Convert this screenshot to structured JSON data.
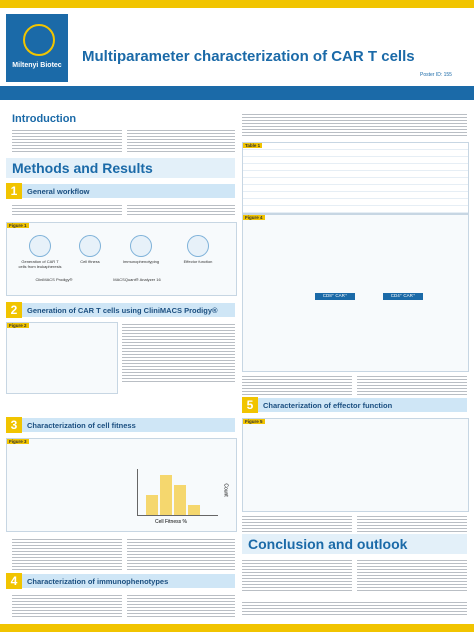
{
  "header": {
    "brand": "Miltenyi Biotec",
    "title": "Multiparameter characterization of CAR T cells",
    "poster_id": "Poster ID: 155"
  },
  "introduction": {
    "title": "Introduction"
  },
  "methods": {
    "title": "Methods and Results"
  },
  "sections": [
    {
      "number": "1",
      "title": "General workflow"
    },
    {
      "number": "2",
      "title": "Generation of CAR T cells using CliniMACS Prodigy®"
    },
    {
      "number": "3",
      "title": "Characterization of cell fitness"
    },
    {
      "number": "4",
      "title": "Characterization of immunophenotypes"
    },
    {
      "number": "5",
      "title": "Characterization of effector function"
    }
  ],
  "figures": {
    "f1": "Figure 1",
    "f2": "Figure 2",
    "f3": "Figure 3",
    "f4": "Figure 4",
    "f5": "Figure 5",
    "t1": "Table 1"
  },
  "workflow": {
    "steps": [
      "Generation of CAR T cells from leukapheresis",
      "Cell fitness",
      "Immunophenotyping",
      "Effector function"
    ],
    "devices": [
      "CliniMACS Prodigy®",
      "MACSQuant® Analyzer 16"
    ]
  },
  "figure3": {
    "x_label": "Cell Fitness %",
    "y_label": "Count"
  },
  "figure4": {
    "panels": [
      "CD8⁺ CAR⁺",
      "CD4⁺ CAR⁺"
    ]
  },
  "conclusion": {
    "title": "Conclusion and outlook"
  }
}
